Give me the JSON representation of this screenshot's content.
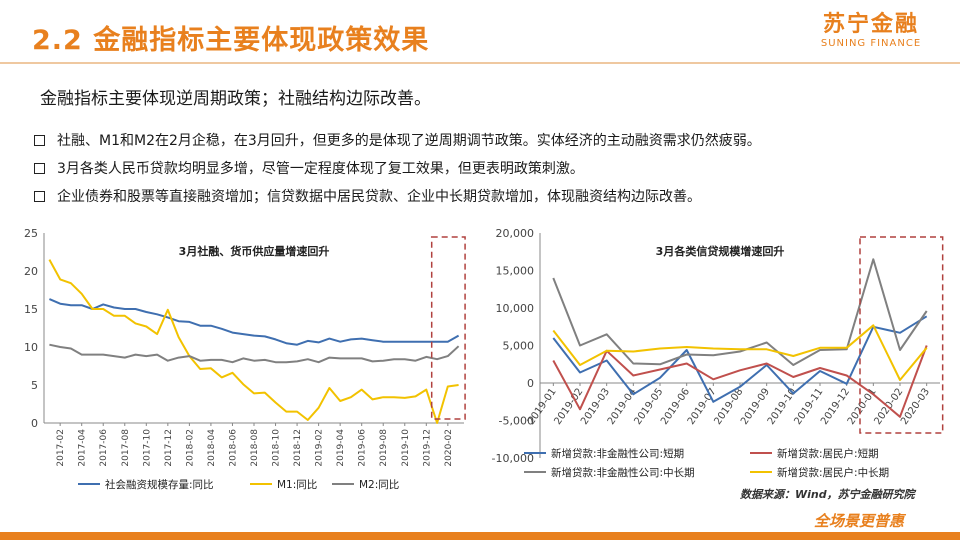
{
  "header": {
    "title": "2.2 金融指标主要体现政策效果",
    "logo_main": "苏宁金融",
    "logo_sub": "SUNING FINANCE"
  },
  "subtitle": "金融指标主要体现逆周期政策；社融结构边际改善。",
  "bullets": [
    "社融、M1和M2在2月企稳，在3月回升，但更多的是体现了逆周期调节政策。实体经济的主动融资需求仍然疲弱。",
    "3月各类人民币贷款均明显多增，尽管一定程度体现了复工效果，但更表明政策刺激。",
    "企业债券和股票等直接融资增加；信贷数据中居民贷款、企业中长期贷款增加，体现融资结构边际改善。"
  ],
  "footer": {
    "source": "数据来源：Wind，苏宁金融研究院",
    "slogan": "全场景更普惠"
  },
  "colors": {
    "accent": "#e8801e",
    "blue": "#3f6fb0",
    "yellow": "#f2c200",
    "gray": "#808080",
    "red": "#c0504d",
    "highlight_box": "#b0413e"
  },
  "chart_data": [
    {
      "type": "line",
      "title": "3月社融、货币供应量增速回升",
      "x": [
        "2017-01",
        "2017-02",
        "2017-03",
        "2017-04",
        "2017-05",
        "2017-06",
        "2017-07",
        "2017-08",
        "2017-09",
        "2017-10",
        "2017-11",
        "2017-12",
        "2018-01",
        "2018-02",
        "2018-03",
        "2018-04",
        "2018-05",
        "2018-06",
        "2018-07",
        "2018-08",
        "2018-09",
        "2018-10",
        "2018-11",
        "2018-12",
        "2019-01",
        "2019-02",
        "2019-03",
        "2019-04",
        "2019-05",
        "2019-06",
        "2019-07",
        "2019-08",
        "2019-09",
        "2019-10",
        "2019-11",
        "2019-12",
        "2020-01",
        "2020-02",
        "2020-03"
      ],
      "xticks": [
        "2017-02",
        "2017-04",
        "2017-06",
        "2017-08",
        "2017-10",
        "2017-12",
        "2018-02",
        "2018-04",
        "2018-06",
        "2018-08",
        "2018-10",
        "2018-12",
        "2019-02",
        "2019-04",
        "2019-06",
        "2019-08",
        "2019-10",
        "2019-12",
        "2020-02"
      ],
      "ylim": [
        0,
        25
      ],
      "yticks": [
        0,
        5,
        10,
        15,
        20,
        25
      ],
      "highlight_last_points": 3,
      "series": [
        {
          "name": "社会融资规模存量:同比",
          "color": "#3f6fb0",
          "values": [
            16.3,
            15.7,
            15.5,
            15.5,
            15.0,
            15.6,
            15.2,
            15.0,
            15.0,
            14.6,
            14.3,
            13.9,
            13.4,
            13.3,
            12.8,
            12.8,
            12.4,
            11.9,
            11.7,
            11.5,
            11.4,
            11.0,
            10.5,
            10.3,
            10.8,
            10.6,
            11.1,
            10.7,
            11.0,
            11.1,
            10.9,
            10.7,
            10.7,
            10.7,
            10.7,
            10.7,
            10.7,
            10.7,
            11.5
          ]
        },
        {
          "name": "M1:同比",
          "color": "#f2c200",
          "values": [
            21.5,
            18.9,
            18.4,
            17.0,
            15.0,
            15.0,
            14.1,
            14.1,
            13.1,
            12.7,
            11.7,
            14.9,
            11.3,
            8.8,
            7.1,
            7.2,
            6.0,
            6.6,
            5.1,
            3.9,
            4.0,
            2.7,
            1.5,
            1.5,
            0.4,
            2.0,
            4.6,
            2.9,
            3.4,
            4.4,
            3.1,
            3.4,
            3.4,
            3.3,
            3.5,
            4.4,
            0.0,
            4.8,
            5.0
          ]
        },
        {
          "name": "M2:同比",
          "color": "#808080",
          "values": [
            10.3,
            10.0,
            9.8,
            9.0,
            9.0,
            9.0,
            8.8,
            8.6,
            9.0,
            8.8,
            9.0,
            8.2,
            8.6,
            8.8,
            8.2,
            8.3,
            8.3,
            8.0,
            8.5,
            8.2,
            8.3,
            8.0,
            8.0,
            8.1,
            8.4,
            8.0,
            8.6,
            8.5,
            8.5,
            8.5,
            8.1,
            8.2,
            8.4,
            8.4,
            8.2,
            8.7,
            8.4,
            8.8,
            10.1
          ]
        }
      ]
    },
    {
      "type": "line",
      "title": "3月各类信贷规模增速回升",
      "x": [
        "2019-01",
        "2019-02",
        "2019-03",
        "2019-04",
        "2019-05",
        "2019-06",
        "2019-07",
        "2019-08",
        "2019-09",
        "2019-10",
        "2019-11",
        "2019-12",
        "2020-01",
        "2020-02",
        "2020-03"
      ],
      "ylim": [
        -10000,
        20000
      ],
      "yticks": [
        -10000,
        -5000,
        0,
        5000,
        10000,
        15000,
        20000
      ],
      "ytick_labels": [
        "-10,000",
        "-5,000",
        "0",
        "5,000",
        "10,000",
        "15,000",
        "20,000"
      ],
      "highlight_last_points": 3,
      "series": [
        {
          "name": "新增贷款:非金融性公司:短期",
          "color": "#3f6fb0",
          "values": [
            6000,
            1400,
            3000,
            -1500,
            700,
            4400,
            -2500,
            -500,
            2400,
            -1400,
            1600,
            -100,
            7500,
            6700,
            8900
          ]
        },
        {
          "name": "新增贷款:居民户:短期",
          "color": "#c0504d",
          "values": [
            3000,
            -3500,
            4300,
            1000,
            1800,
            2600,
            500,
            1700,
            2600,
            800,
            2000,
            1000,
            -1500,
            -4500,
            5000
          ]
        },
        {
          "name": "新增贷款:非金融性公司:中长期",
          "color": "#808080",
          "values": [
            14000,
            5000,
            6500,
            2600,
            2500,
            3800,
            3700,
            4200,
            5400,
            2400,
            4400,
            4500,
            16500,
            4400,
            9600
          ]
        },
        {
          "name": "新增贷款:居民户:中长期",
          "color": "#f2c200",
          "values": [
            7000,
            2400,
            4300,
            4200,
            4600,
            4800,
            4600,
            4500,
            4500,
            3600,
            4700,
            4700,
            7700,
            400,
            4700
          ]
        }
      ]
    }
  ]
}
